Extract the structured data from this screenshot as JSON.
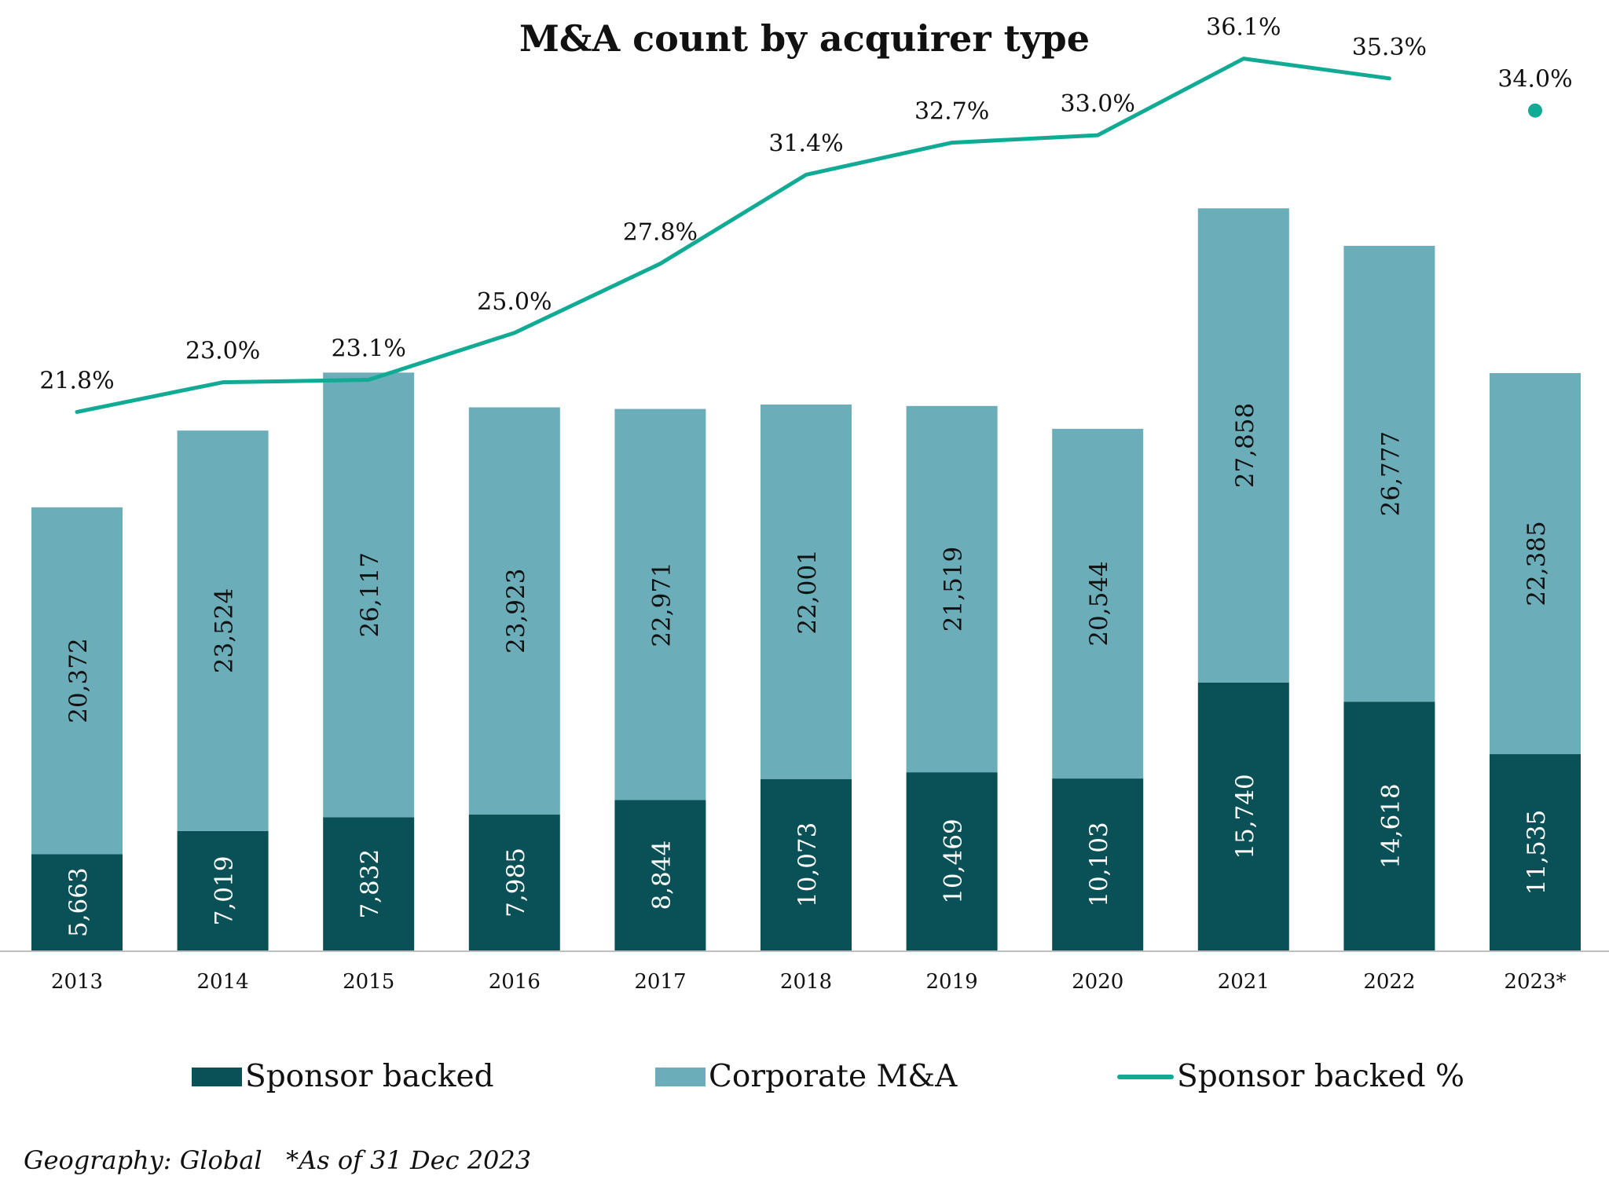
{
  "title": "M&A count by acquirer type",
  "colors": {
    "sponsor_backed": "#0a5157",
    "corporate": "#6baeba",
    "line": "#11ab95",
    "axis": "#bfbfbf"
  },
  "legend": {
    "sponsor_label": "Sponsor backed",
    "corporate_label": "Corporate M&A",
    "line_label": "Sponsor backed %"
  },
  "footnote": "Geography: Global   *As of 31 Dec 2023",
  "chart_data": {
    "type": "bar",
    "stacked": true,
    "title": "M&A count by acquirer type",
    "categories": [
      "2013",
      "2014",
      "2015",
      "2016",
      "2017",
      "2018",
      "2019",
      "2020",
      "2021",
      "2022",
      "2023*"
    ],
    "series": [
      {
        "name": "Sponsor backed",
        "type": "bar",
        "values": [
          5663,
          7019,
          7832,
          7985,
          8844,
          10073,
          10469,
          10103,
          15740,
          14618,
          11535
        ],
        "labels": [
          "5,663",
          "7,019",
          "7,832",
          "7,985",
          "8,844",
          "10,073",
          "10,469",
          "10,103",
          "15,740",
          "14,618",
          "11,535"
        ]
      },
      {
        "name": "Corporate M&A",
        "type": "bar",
        "values": [
          20372,
          23524,
          26117,
          23923,
          22971,
          22001,
          21519,
          20544,
          27858,
          26777,
          22385
        ],
        "labels": [
          "20,372",
          "23,524",
          "26,117",
          "23,923",
          "22,971",
          "22,001",
          "21,519",
          "20,544",
          "27,858",
          "26,777",
          "22,385"
        ]
      },
      {
        "name": "Sponsor backed %",
        "type": "line",
        "values": [
          21.8,
          23.0,
          23.1,
          25.0,
          27.8,
          31.4,
          32.7,
          33.0,
          36.1,
          35.3,
          34.0
        ],
        "labels": [
          "21.8%",
          "23.0%",
          "23.1%",
          "25.0%",
          "27.8%",
          "31.4%",
          "32.7%",
          "33.0%",
          "36.1%",
          "35.3%",
          "34.0%"
        ],
        "line_breaks_before_last": true
      }
    ],
    "ylim_counts": [
      0,
      45000
    ],
    "ylim_percent": [
      0,
      40
    ],
    "grid": false,
    "legend_position": "bottom"
  }
}
